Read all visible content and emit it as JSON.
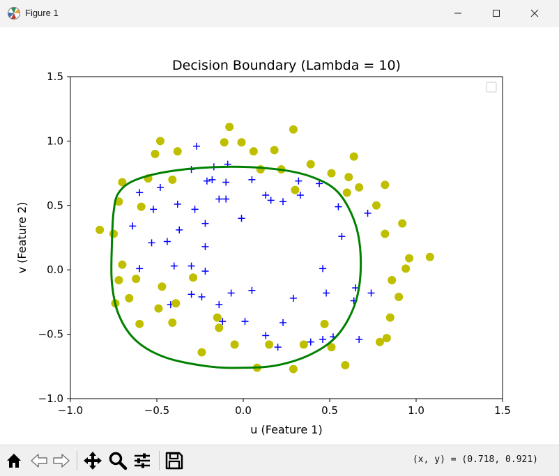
{
  "window": {
    "title": "Figure 1",
    "minimize_icon": "minimize-icon",
    "maximize_icon": "maximize-icon",
    "close_icon": "close-icon"
  },
  "chart_data": {
    "type": "scatter",
    "title": "Decision Boundary (Lambda = 10)",
    "xlabel": "u (Feature 1)",
    "ylabel": "v (Feature 2)",
    "xlim": [
      -1.0,
      1.5
    ],
    "ylim": [
      -1.0,
      1.5
    ],
    "xticks": [
      "−1.0",
      "−0.5",
      "0.0",
      "0.5",
      "1.0",
      "1.5"
    ],
    "yticks": [
      "−1.0",
      "−0.5",
      "0.0",
      "0.5",
      "1.0",
      "1.5"
    ],
    "xtick_values": [
      -1.0,
      -0.5,
      0.0,
      0.5,
      1.0,
      1.5
    ],
    "ytick_values": [
      -1.0,
      -0.5,
      0.0,
      0.5,
      1.0,
      1.5
    ],
    "grid": false,
    "legend": {
      "placement": "top-right",
      "entries": []
    },
    "colors": {
      "positive": "#0000ff",
      "negative": "#bfbf00",
      "boundary": "#008000"
    },
    "series": [
      {
        "marker": "+",
        "color": "#0000ff",
        "points": [
          [
            -0.27,
            0.96
          ],
          [
            -0.3,
            0.78
          ],
          [
            -0.17,
            0.8
          ],
          [
            -0.09,
            0.82
          ],
          [
            -0.21,
            0.69
          ],
          [
            -0.18,
            0.7
          ],
          [
            -0.1,
            0.68
          ],
          [
            0.05,
            0.7
          ],
          [
            0.13,
            0.58
          ],
          [
            0.16,
            0.54
          ],
          [
            0.23,
            0.53
          ],
          [
            0.32,
            0.69
          ],
          [
            0.33,
            0.58
          ],
          [
            0.44,
            0.67
          ],
          [
            -0.6,
            0.6
          ],
          [
            -0.48,
            0.64
          ],
          [
            -0.64,
            0.34
          ],
          [
            -0.52,
            0.47
          ],
          [
            -0.38,
            0.51
          ],
          [
            -0.28,
            0.47
          ],
          [
            -0.14,
            0.55
          ],
          [
            -0.1,
            0.55
          ],
          [
            -0.22,
            0.36
          ],
          [
            -0.37,
            0.31
          ],
          [
            -0.01,
            0.4
          ],
          [
            -0.53,
            0.21
          ],
          [
            -0.44,
            0.22
          ],
          [
            -0.22,
            0.18
          ],
          [
            0.55,
            0.49
          ],
          [
            0.72,
            0.44
          ],
          [
            0.57,
            0.26
          ],
          [
            -0.6,
            0.01
          ],
          [
            -0.4,
            0.03
          ],
          [
            -0.3,
            0.03
          ],
          [
            -0.22,
            -0.01
          ],
          [
            0.46,
            0.01
          ],
          [
            0.05,
            -0.16
          ],
          [
            -0.07,
            -0.18
          ],
          [
            -0.3,
            -0.19
          ],
          [
            -0.24,
            -0.21
          ],
          [
            0.29,
            -0.22
          ],
          [
            0.48,
            -0.18
          ],
          [
            0.65,
            -0.14
          ],
          [
            0.74,
            -0.18
          ],
          [
            0.64,
            -0.24
          ],
          [
            -0.42,
            -0.27
          ],
          [
            -0.14,
            -0.27
          ],
          [
            -0.12,
            -0.4
          ],
          [
            0.01,
            -0.4
          ],
          [
            0.23,
            -0.41
          ],
          [
            0.13,
            -0.51
          ],
          [
            0.2,
            -0.6
          ],
          [
            0.39,
            -0.56
          ],
          [
            0.46,
            -0.54
          ],
          [
            0.52,
            -0.52
          ],
          [
            0.67,
            -0.54
          ]
        ]
      },
      {
        "marker": "o",
        "color": "#bfbf00",
        "points": [
          [
            -0.08,
            1.11
          ],
          [
            0.29,
            1.09
          ],
          [
            -0.48,
            1.0
          ],
          [
            -0.11,
            0.99
          ],
          [
            -0.01,
            0.99
          ],
          [
            -0.51,
            0.9
          ],
          [
            -0.38,
            0.92
          ],
          [
            0.06,
            0.92
          ],
          [
            0.18,
            0.93
          ],
          [
            0.64,
            0.88
          ],
          [
            0.39,
            0.82
          ],
          [
            0.1,
            0.78
          ],
          [
            0.22,
            0.78
          ],
          [
            0.51,
            0.75
          ],
          [
            -0.41,
            0.7
          ],
          [
            -0.55,
            0.71
          ],
          [
            -0.7,
            0.68
          ],
          [
            0.61,
            0.72
          ],
          [
            0.67,
            0.64
          ],
          [
            0.6,
            0.6
          ],
          [
            0.3,
            0.62
          ],
          [
            0.82,
            0.66
          ],
          [
            -0.72,
            0.53
          ],
          [
            -0.59,
            0.49
          ],
          [
            0.77,
            0.5
          ],
          [
            -0.83,
            0.31
          ],
          [
            -0.75,
            0.28
          ],
          [
            0.92,
            0.36
          ],
          [
            0.82,
            0.28
          ],
          [
            -0.7,
            0.04
          ],
          [
            0.96,
            0.09
          ],
          [
            1.08,
            0.1
          ],
          [
            0.94,
            0.01
          ],
          [
            -0.62,
            -0.07
          ],
          [
            -0.72,
            -0.08
          ],
          [
            -0.29,
            -0.06
          ],
          [
            0.86,
            -0.08
          ],
          [
            -0.47,
            -0.13
          ],
          [
            0.9,
            -0.21
          ],
          [
            -0.66,
            -0.22
          ],
          [
            -0.74,
            -0.26
          ],
          [
            -0.39,
            -0.26
          ],
          [
            -0.49,
            -0.3
          ],
          [
            0.85,
            -0.37
          ],
          [
            -0.15,
            -0.37
          ],
          [
            -0.6,
            -0.42
          ],
          [
            -0.41,
            -0.41
          ],
          [
            -0.14,
            -0.45
          ],
          [
            0.47,
            -0.42
          ],
          [
            0.83,
            -0.53
          ],
          [
            0.79,
            -0.56
          ],
          [
            -0.05,
            -0.58
          ],
          [
            0.15,
            -0.58
          ],
          [
            0.35,
            -0.58
          ],
          [
            0.51,
            -0.6
          ],
          [
            -0.24,
            -0.64
          ],
          [
            0.59,
            -0.74
          ],
          [
            0.08,
            -0.76
          ],
          [
            0.29,
            -0.77
          ]
        ]
      },
      {
        "marker": "line",
        "color": "#008000",
        "points": [
          [
            -0.76,
            0.2
          ],
          [
            -0.75,
            0.45
          ],
          [
            -0.72,
            0.6
          ],
          [
            -0.62,
            0.7
          ],
          [
            -0.4,
            0.77
          ],
          [
            -0.1,
            0.8
          ],
          [
            0.2,
            0.78
          ],
          [
            0.4,
            0.72
          ],
          [
            0.55,
            0.6
          ],
          [
            0.65,
            0.35
          ],
          [
            0.68,
            0.05
          ],
          [
            0.65,
            -0.25
          ],
          [
            0.55,
            -0.5
          ],
          [
            0.4,
            -0.65
          ],
          [
            0.2,
            -0.74
          ],
          [
            0.0,
            -0.76
          ],
          [
            -0.2,
            -0.75
          ],
          [
            -0.45,
            -0.68
          ],
          [
            -0.62,
            -0.55
          ],
          [
            -0.72,
            -0.35
          ],
          [
            -0.76,
            -0.1
          ],
          [
            -0.76,
            0.2
          ]
        ]
      }
    ]
  },
  "toolbar": {
    "coords": "(x, y) = (0.718, 0.921)"
  }
}
